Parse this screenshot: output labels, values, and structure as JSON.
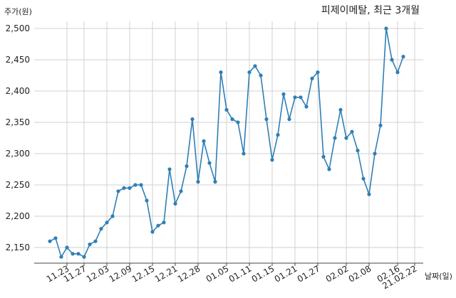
{
  "chart_data": {
    "type": "line",
    "title": "피제이메탈, 최근 3개월",
    "ylabel": "주가(원)",
    "xlabel": "날짜(일)",
    "ylim": [
      2115,
      2510
    ],
    "y_ticks": [
      2150,
      2200,
      2250,
      2300,
      2350,
      2400,
      2450,
      2500
    ],
    "y_tick_labels": [
      "2,150",
      "2,200",
      "2,250",
      "2,300",
      "2,350",
      "2,400",
      "2,450",
      "2,500"
    ],
    "x_tick_labels": [
      "11.23",
      "11.27",
      "12.03",
      "12.09",
      "12.15",
      "12.21",
      "12.28",
      "01.05",
      "01.11",
      "01.15",
      "01.21",
      "01.27",
      "02.02",
      "02.08",
      "02.16",
      "21.02.22"
    ],
    "x_tick_index": [
      3,
      6,
      10,
      14,
      18,
      22,
      26,
      31,
      35,
      39,
      43,
      47,
      52,
      56,
      61,
      64
    ],
    "grid": true,
    "color": "#2f7fb5",
    "series": [
      {
        "values": [
          2160,
          2165,
          2135,
          2150,
          2140,
          2140,
          2135,
          2155,
          2160,
          2180,
          2190,
          2200,
          2240,
          2245,
          2245,
          2250,
          2250,
          2225,
          2175,
          2185,
          2190,
          2275,
          2220,
          2240,
          2280,
          2355,
          2255,
          2320,
          2285,
          2255,
          2430,
          2370,
          2355,
          2350,
          2300,
          2430,
          2440,
          2425,
          2355,
          2290,
          2330,
          2395,
          2355,
          2390,
          2390,
          2375,
          2420,
          2430,
          2295,
          2275,
          2325,
          2370,
          2325,
          2335,
          2305,
          2260,
          2235,
          2300,
          2345,
          2500,
          2450,
          2430,
          2455
        ]
      }
    ]
  }
}
